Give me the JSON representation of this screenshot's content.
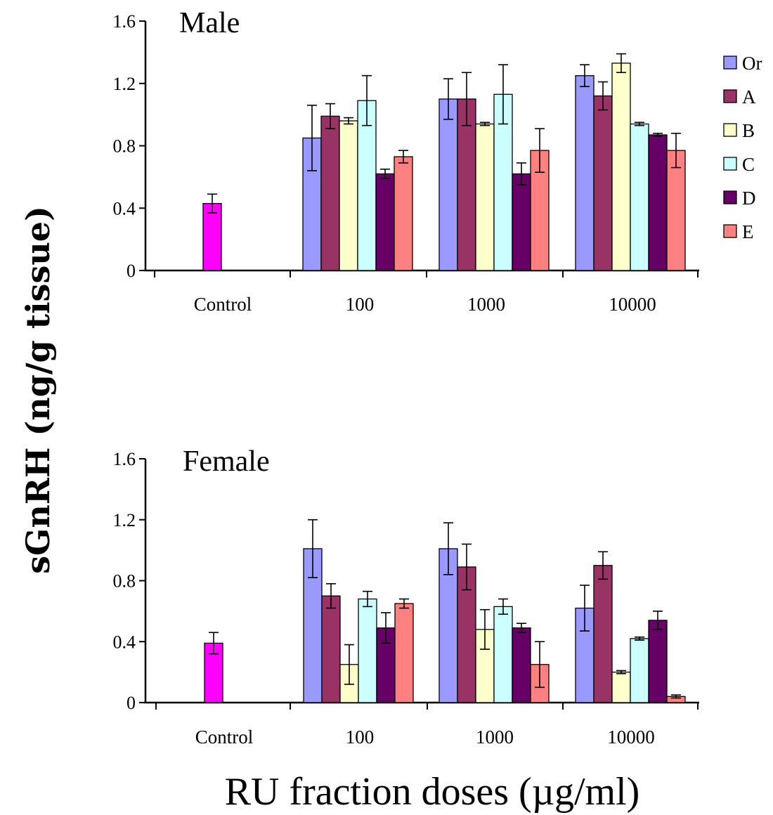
{
  "figure": {
    "ylabel": "sGnRH (ng/g tissue)",
    "xlabel": "RU fraction doses (µg/ml)"
  },
  "chart_data": [
    {
      "type": "bar",
      "title": "Male",
      "ylim": [
        0,
        1.6
      ],
      "yticks": [
        "0",
        "0.4",
        "0.8",
        "1.2",
        "1.6"
      ],
      "groups": [
        "Control",
        "100",
        "1000",
        "10000"
      ],
      "control": {
        "value": 0.43,
        "err": 0.06,
        "color": "#ff00ff"
      },
      "legend_position": "right",
      "series": [
        {
          "name": "Or",
          "color": "#9999ff",
          "values": [
            0.85,
            1.1,
            1.25
          ],
          "errors": [
            0.21,
            0.13,
            0.07
          ]
        },
        {
          "name": "A",
          "color": "#993366",
          "values": [
            0.99,
            1.1,
            1.12
          ],
          "errors": [
            0.08,
            0.17,
            0.09
          ]
        },
        {
          "name": "B",
          "color": "#ffffcc",
          "values": [
            0.96,
            0.94,
            1.33
          ],
          "errors": [
            0.02,
            0.01,
            0.06
          ]
        },
        {
          "name": "C",
          "color": "#ccffff",
          "values": [
            1.09,
            1.13,
            0.94
          ],
          "errors": [
            0.16,
            0.19,
            0.01
          ]
        },
        {
          "name": "D",
          "color": "#660066",
          "values": [
            0.62,
            0.62,
            0.87
          ],
          "errors": [
            0.03,
            0.07,
            0.01
          ]
        },
        {
          "name": "E",
          "color": "#ff8080",
          "values": [
            0.73,
            0.77,
            0.77
          ],
          "errors": [
            0.04,
            0.14,
            0.11
          ]
        }
      ]
    },
    {
      "type": "bar",
      "title": "Female",
      "ylim": [
        0,
        1.6
      ],
      "yticks": [
        "0",
        "0.4",
        "0.8",
        "1.2",
        "1.6"
      ],
      "groups": [
        "Control",
        "100",
        "1000",
        "10000"
      ],
      "control": {
        "value": 0.39,
        "err": 0.07,
        "color": "#ff00ff"
      },
      "series": [
        {
          "name": "Or",
          "color": "#9999ff",
          "values": [
            1.01,
            1.01,
            0.62
          ],
          "errors": [
            0.19,
            0.17,
            0.15
          ]
        },
        {
          "name": "A",
          "color": "#993366",
          "values": [
            0.7,
            0.89,
            0.9
          ],
          "errors": [
            0.08,
            0.15,
            0.09
          ]
        },
        {
          "name": "B",
          "color": "#ffffcc",
          "values": [
            0.25,
            0.48,
            0.2
          ],
          "errors": [
            0.13,
            0.13,
            0.01
          ]
        },
        {
          "name": "C",
          "color": "#ccffff",
          "values": [
            0.68,
            0.63,
            0.42
          ],
          "errors": [
            0.05,
            0.05,
            0.01
          ]
        },
        {
          "name": "D",
          "color": "#660066",
          "values": [
            0.49,
            0.49,
            0.54
          ],
          "errors": [
            0.1,
            0.03,
            0.06
          ]
        },
        {
          "name": "E",
          "color": "#ff8080",
          "values": [
            0.65,
            0.25,
            0.04
          ],
          "errors": [
            0.03,
            0.15,
            0.01
          ]
        }
      ]
    }
  ]
}
